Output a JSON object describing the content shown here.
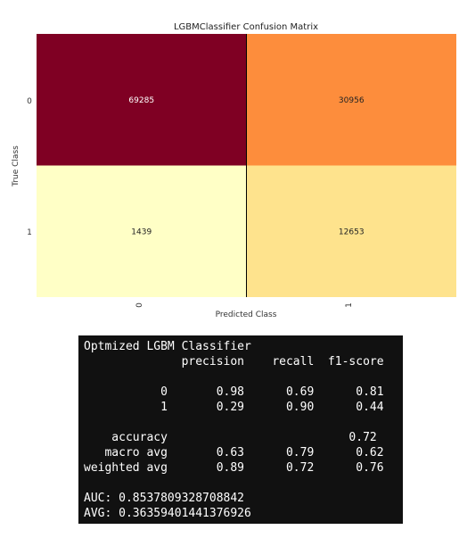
{
  "chart_data": {
    "type": "heatmap",
    "title": "LGBMClassifier Confusion Matrix",
    "xlabel": "Predicted Class",
    "ylabel": "True Class",
    "x_categories": [
      "0",
      "1"
    ],
    "y_categories": [
      "0",
      "1"
    ],
    "values": [
      [
        69285,
        30956
      ],
      [
        1439,
        12653
      ]
    ],
    "cell_colors": [
      [
        "#7f0023",
        "#fd8d3c"
      ],
      [
        "#ffffc6",
        "#fee38d"
      ]
    ],
    "cell_label_colors": [
      [
        "#ffffff",
        "#222222"
      ],
      [
        "#222222",
        "#222222"
      ]
    ]
  },
  "report": {
    "lines": [
      "Optmized LGBM Classifier",
      "              precision    recall  f1-score",
      "",
      "           0       0.98      0.69      0.81",
      "           1       0.29      0.90      0.44",
      "",
      "    accuracy                          0.72",
      "   macro avg       0.63      0.79      0.62",
      "weighted avg       0.89      0.72      0.76",
      "",
      "AUC: 0.8537809328708842",
      "AVG: 0.36359401441376926"
    ]
  }
}
